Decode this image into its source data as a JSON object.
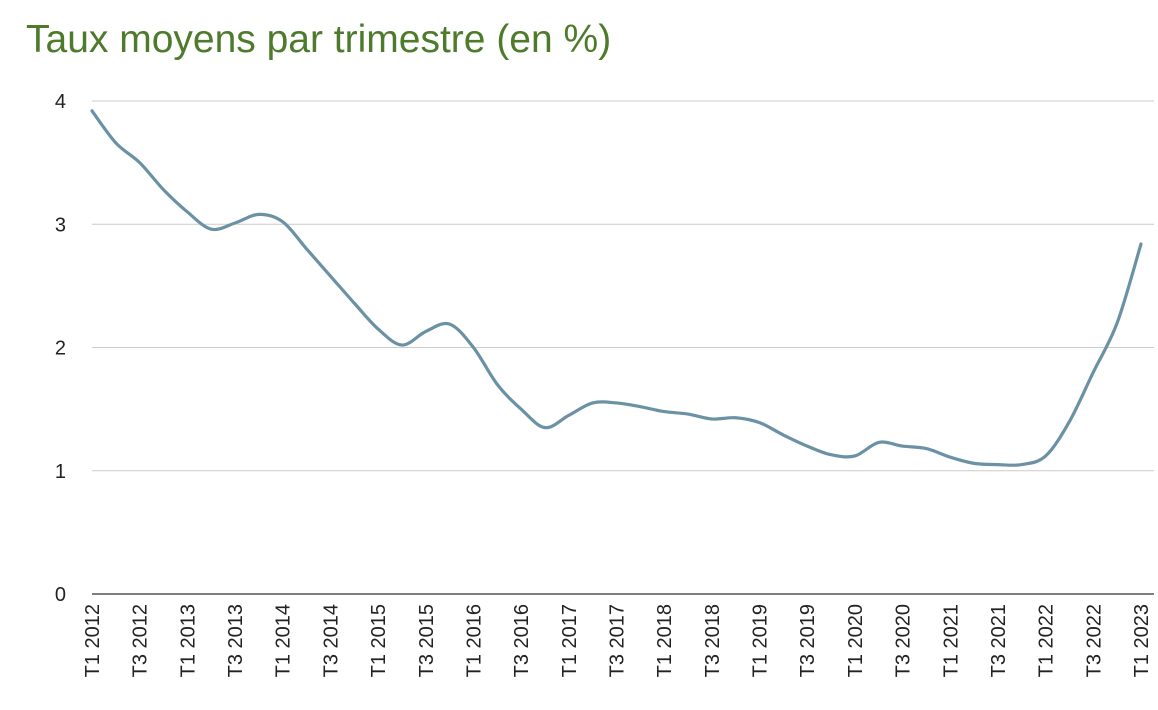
{
  "chart_data": {
    "type": "line",
    "title": "Taux moyens par trimestre (en %)",
    "xlabel": "",
    "ylabel": "",
    "ylim": [
      0,
      4
    ],
    "yticks": [
      0,
      1,
      2,
      3,
      4
    ],
    "grid": true,
    "legend": "none",
    "colors": {
      "title": "#4e7a2c",
      "line": "#6b91a5",
      "grid": "#cccccc"
    },
    "x": [
      "T1 2012",
      "T2 2012",
      "T3 2012",
      "T4 2012",
      "T1 2013",
      "T2 2013",
      "T3 2013",
      "T4 2013",
      "T1 2014",
      "T2 2014",
      "T3 2014",
      "T4 2014",
      "T1 2015",
      "T2 2015",
      "T3 2015",
      "T4 2015",
      "T1 2016",
      "T2 2016",
      "T3 2016",
      "T4 2016",
      "T1 2017",
      "T2 2017",
      "T3 2017",
      "T4 2017",
      "T1 2018",
      "T2 2018",
      "T3 2018",
      "T4 2018",
      "T1 2019",
      "T2 2019",
      "T3 2019",
      "T4 2019",
      "T1 2020",
      "T2 2020",
      "T3 2020",
      "T4 2020",
      "T1 2021",
      "T2 2021",
      "T3 2021",
      "T4 2021",
      "T1 2022",
      "T2 2022",
      "T3 2022",
      "T4 2022",
      "T1 2023"
    ],
    "x_tick_labels": [
      "T1 2012",
      "T3 2012",
      "T1 2013",
      "T3 2013",
      "T1 2014",
      "T3 2014",
      "T1 2015",
      "T3 2015",
      "T1 2016",
      "T3 2016",
      "T1 2017",
      "T3 2017",
      "T1 2018",
      "T3 2018",
      "T1 2019",
      "T3 2019",
      "T1 2020",
      "T3 2020",
      "T1 2021",
      "T3 2021",
      "T1 2022",
      "T3 2022",
      "T1 2023"
    ],
    "series": [
      {
        "values": [
          3.92,
          3.66,
          3.5,
          3.28,
          3.1,
          2.96,
          3.01,
          3.08,
          3.02,
          2.8,
          2.58,
          2.36,
          2.15,
          2.02,
          2.13,
          2.19,
          2.0,
          1.7,
          1.5,
          1.35,
          1.45,
          1.55,
          1.55,
          1.52,
          1.48,
          1.46,
          1.42,
          1.43,
          1.39,
          1.29,
          1.2,
          1.13,
          1.12,
          1.23,
          1.2,
          1.18,
          1.11,
          1.06,
          1.05,
          1.05,
          1.12,
          1.4,
          1.8,
          2.2,
          2.84
        ]
      }
    ]
  }
}
